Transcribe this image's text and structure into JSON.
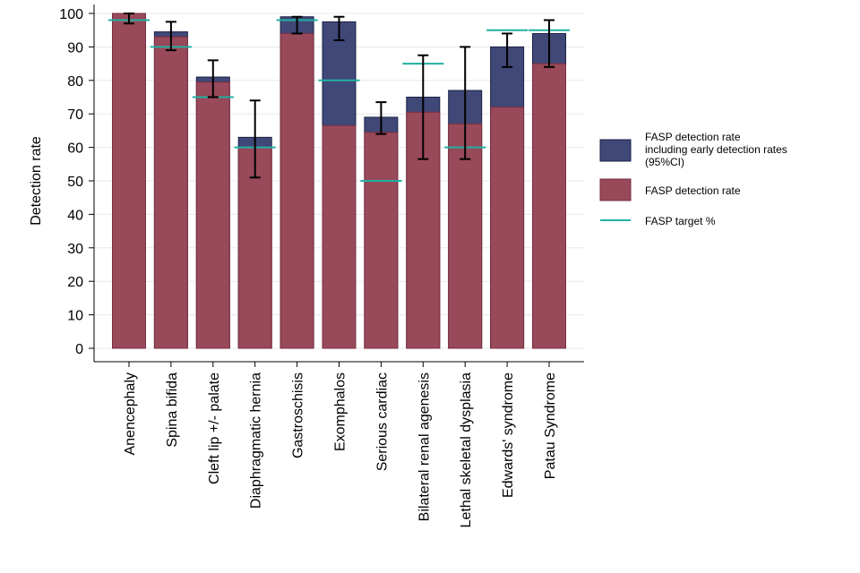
{
  "chart_data": {
    "type": "bar",
    "ylabel": "Detection rate",
    "ylim": [
      0,
      100
    ],
    "yticks": [
      0,
      10,
      20,
      30,
      40,
      50,
      60,
      70,
      80,
      90,
      100
    ],
    "grid": true,
    "categories": [
      "Anencephaly",
      "Spina bifida",
      "Cleft lip +/- palate",
      "Diaphragmatic hernia",
      "Gastroschisis",
      "Exomphalos",
      "Serious cardiac",
      "Bilateral renal agenesis",
      "Lethal skeletal dysplasia",
      "Edwards' syndrome",
      "Patau Syndrome"
    ],
    "series": [
      {
        "name": "FASP detection rate including early detection rates (95%CI)",
        "values": [
          100,
          94.5,
          81,
          63,
          99,
          97.5,
          69,
          75,
          77,
          90,
          94
        ],
        "ci_low": [
          97,
          89,
          75,
          51,
          94,
          92,
          64,
          56.5,
          56.5,
          84,
          84
        ],
        "ci_high": [
          100,
          97.5,
          86,
          74,
          99,
          99,
          73.5,
          87.5,
          90,
          94,
          98
        ]
      },
      {
        "name": "FASP detection rate",
        "values": [
          100,
          93,
          79.5,
          60,
          94,
          66.5,
          64.5,
          70.5,
          67,
          72,
          85
        ]
      },
      {
        "name": "FASP target %",
        "values": [
          98,
          90,
          75,
          60,
          98,
          80,
          50,
          85,
          60,
          95,
          95
        ]
      }
    ],
    "legend_position": "right",
    "colors": {
      "early": "#404878",
      "early_edge": "#1d2145",
      "fasp": "#98495a",
      "fasp_edge": "#7a2e40",
      "target": "#20b0a0",
      "grid": "#e8e8e8"
    }
  },
  "legend": {
    "early_lines": [
      "FASP detection rate",
      "including early detection rates",
      "(95%CI)"
    ],
    "fasp_label": "FASP detection rate",
    "target_label": "FASP target %"
  }
}
